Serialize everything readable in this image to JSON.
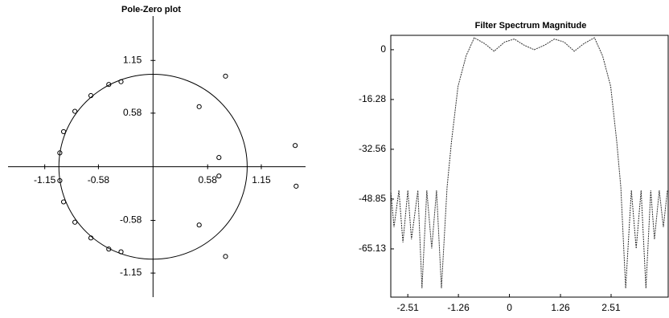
{
  "chart_data": [
    {
      "type": "scatter",
      "title": "Pole-Zero plot",
      "color": "#000000",
      "unit_circle": true,
      "x": [
        -0.34,
        -0.47,
        -0.66,
        -0.83,
        -0.95,
        -0.99,
        -0.99,
        -0.95,
        -0.83,
        -0.66,
        -0.47,
        -0.34,
        0.77,
        0.49,
        0.7,
        0.7,
        1.51,
        1.52,
        0.49,
        0.77
      ],
      "values": [
        0.92,
        0.89,
        0.77,
        0.6,
        0.38,
        0.15,
        -0.15,
        -0.38,
        -0.6,
        -0.77,
        -0.89,
        -0.92,
        0.98,
        0.65,
        0.1,
        -0.1,
        0.23,
        -0.21,
        -0.63,
        -0.97
      ],
      "xlim": [
        -1.54,
        1.62
      ],
      "ylim": [
        -1.41,
        1.63
      ],
      "xticks": [
        -1.15,
        -0.58,
        0.58,
        1.15
      ],
      "yticks": [
        1.15,
        0.58,
        -0.58,
        -1.15
      ]
    },
    {
      "type": "line",
      "title": "Filter Spectrum Magnitude",
      "color": "#333333",
      "x": [
        -2.93,
        -2.85,
        -2.73,
        -2.63,
        -2.51,
        -2.42,
        -2.26,
        -2.16,
        -2.04,
        -1.92,
        -1.8,
        -1.68,
        -1.54,
        -1.43,
        -1.27,
        -1.07,
        -0.87,
        -0.61,
        -0.38,
        -0.12,
        0.12,
        0.36,
        0.61,
        0.87,
        1.11,
        1.35,
        1.6,
        1.84,
        2.1,
        2.3,
        2.5,
        2.65,
        2.75,
        2.87,
        3.01,
        3.13,
        3.25,
        3.37,
        3.49,
        3.58,
        3.7,
        3.8,
        3.9
      ],
      "values": [
        -46,
        -58,
        -46,
        -63,
        -46,
        -62,
        -46,
        -78,
        -46,
        -65,
        -46,
        -78,
        -45,
        -30,
        -12,
        -2,
        3.9,
        2,
        -0.5,
        2.5,
        3.5,
        1.5,
        0,
        1.5,
        3.5,
        2.5,
        -0.5,
        2,
        3.9,
        -2,
        -12,
        -30,
        -45,
        -78,
        -46,
        -65,
        -46,
        -78,
        -46,
        -62,
        -46,
        -58,
        -46
      ],
      "xlim": [
        -2.93,
        3.92
      ],
      "ylim": [
        -80.9,
        4.7
      ],
      "xticks": [
        -2.51,
        -1.26,
        0,
        1.26,
        2.51
      ],
      "yticks": [
        0,
        -16.28,
        -32.56,
        -48.85,
        -65.13
      ]
    }
  ]
}
